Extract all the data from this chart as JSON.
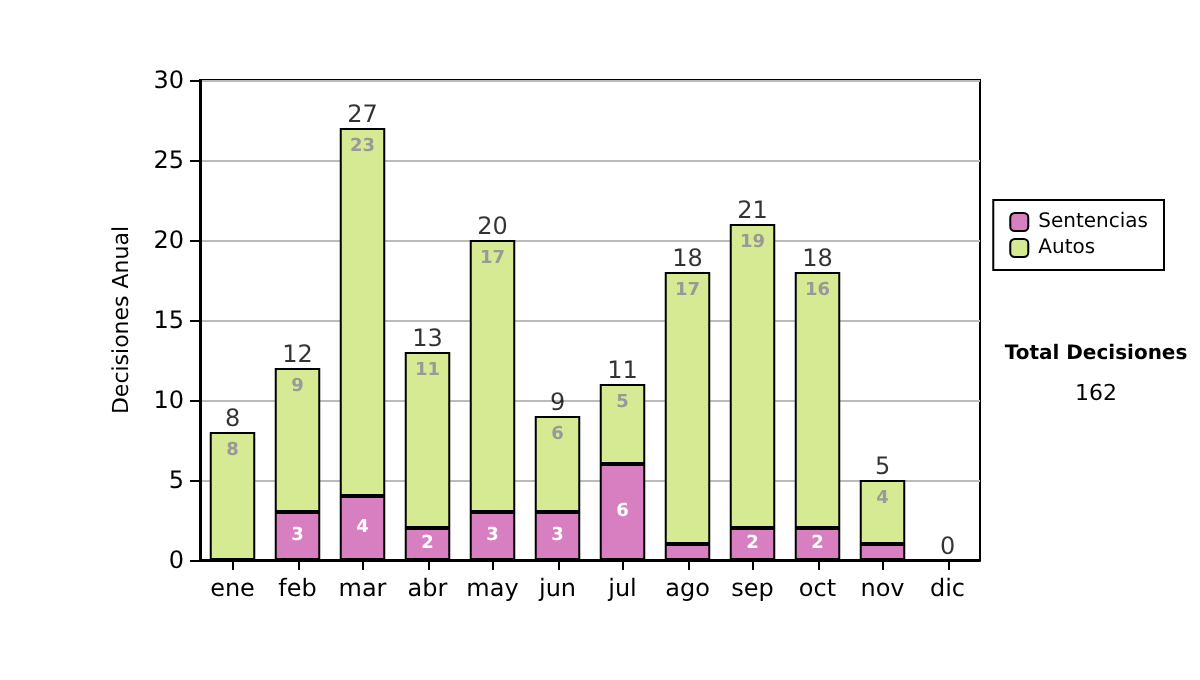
{
  "chart_data": {
    "type": "bar",
    "stacked": true,
    "ylabel": "Decisiones Anual",
    "categories": [
      "ene",
      "feb",
      "mar",
      "abr",
      "may",
      "jun",
      "jul",
      "ago",
      "sep",
      "oct",
      "nov",
      "dic"
    ],
    "series": [
      {
        "name": "Sentencias",
        "color": "#d77fc0",
        "values": [
          0,
          3,
          4,
          2,
          3,
          3,
          6,
          1,
          2,
          2,
          1,
          0
        ],
        "value_labels": [
          null,
          "3",
          "4",
          "2",
          "3",
          "3",
          "6",
          null,
          "2",
          "2",
          null,
          null
        ]
      },
      {
        "name": "Autos",
        "color": "#d5ea93",
        "values": [
          8,
          9,
          23,
          11,
          17,
          6,
          5,
          17,
          19,
          16,
          4,
          0
        ],
        "value_labels": [
          "8",
          "9",
          "23",
          "11",
          "17",
          "6",
          "5",
          "17",
          "19",
          "16",
          "4",
          null
        ]
      }
    ],
    "totals": [
      "8",
      "12",
      "27",
      "13",
      "20",
      "9",
      "11",
      "18",
      "21",
      "18",
      "5",
      "0"
    ],
    "ylim": [
      0,
      30
    ],
    "yticks": [
      0,
      5,
      10,
      15,
      20,
      25,
      30
    ],
    "grid": "y",
    "legend": "right",
    "annotations": [
      "Total Decisiones",
      "162"
    ]
  }
}
